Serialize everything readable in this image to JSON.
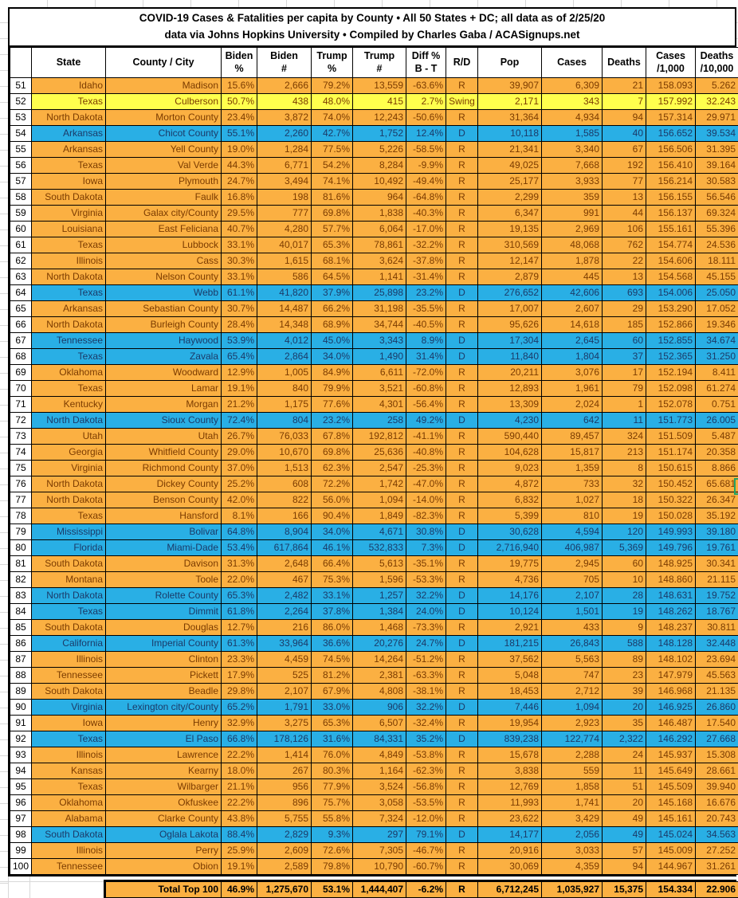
{
  "title": {
    "line1": "COVID-19 Cases & Fatalities per capita by County • All 50 States + DC; all data as of 2/25/20",
    "line2": "data via Johns Hopkins University • Compiled by Charles Gaba / ACASignups.net"
  },
  "columns": [
    {
      "key": "rownum",
      "label": ""
    },
    {
      "key": "state",
      "label": "State"
    },
    {
      "key": "county",
      "label": "County / City"
    },
    {
      "key": "biden-pct",
      "label": "Biden\n%"
    },
    {
      "key": "biden-num",
      "label": "Biden\n#"
    },
    {
      "key": "trump-pct",
      "label": "Trump\n%"
    },
    {
      "key": "trump-num",
      "label": "Trump\n#"
    },
    {
      "key": "diff",
      "label": "Diff %\nB - T"
    },
    {
      "key": "rd",
      "label": "R/D"
    },
    {
      "key": "pop",
      "label": "Pop"
    },
    {
      "key": "cases",
      "label": "Cases"
    },
    {
      "key": "deaths",
      "label": "Deaths"
    },
    {
      "key": "cases-per-1000",
      "label": "Cases\n/1,000"
    },
    {
      "key": "deaths-per-10000",
      "label": "Deaths\n/10,000"
    }
  ],
  "rows": [
    [
      "51",
      "Idaho",
      "Madison",
      "15.6%",
      "2,666",
      "79.2%",
      "13,559",
      "-63.6%",
      "R",
      "39,907",
      "6,309",
      "21",
      "158.093",
      "5.262",
      "o"
    ],
    [
      "52",
      "Texas",
      "Culberson",
      "50.7%",
      "438",
      "48.0%",
      "415",
      "2.7%",
      "Swing",
      "2,171",
      "343",
      "7",
      "157.992",
      "32.243",
      "y"
    ],
    [
      "53",
      "North Dakota",
      "Morton County",
      "23.4%",
      "3,872",
      "74.0%",
      "12,243",
      "-50.6%",
      "R",
      "31,364",
      "4,934",
      "94",
      "157.314",
      "29.971",
      "o"
    ],
    [
      "54",
      "Arkansas",
      "Chicot County",
      "55.1%",
      "2,260",
      "42.7%",
      "1,752",
      "12.4%",
      "D",
      "10,118",
      "1,585",
      "40",
      "156.652",
      "39.534",
      "b"
    ],
    [
      "55",
      "Arkansas",
      "Yell County",
      "19.0%",
      "1,284",
      "77.5%",
      "5,226",
      "-58.5%",
      "R",
      "21,341",
      "3,340",
      "67",
      "156.506",
      "31.395",
      "o"
    ],
    [
      "56",
      "Texas",
      "Val Verde",
      "44.3%",
      "6,771",
      "54.2%",
      "8,284",
      "-9.9%",
      "R",
      "49,025",
      "7,668",
      "192",
      "156.410",
      "39.164",
      "o"
    ],
    [
      "57",
      "Iowa",
      "Plymouth",
      "24.7%",
      "3,494",
      "74.1%",
      "10,492",
      "-49.4%",
      "R",
      "25,177",
      "3,933",
      "77",
      "156.214",
      "30.583",
      "o"
    ],
    [
      "58",
      "South Dakota",
      "Faulk",
      "16.8%",
      "198",
      "81.6%",
      "964",
      "-64.8%",
      "R",
      "2,299",
      "359",
      "13",
      "156.155",
      "56.546",
      "o"
    ],
    [
      "59",
      "Virginia",
      "Galax city/County",
      "29.5%",
      "777",
      "69.8%",
      "1,838",
      "-40.3%",
      "R",
      "6,347",
      "991",
      "44",
      "156.137",
      "69.324",
      "o"
    ],
    [
      "60",
      "Louisiana",
      "East Feliciana",
      "40.7%",
      "4,280",
      "57.7%",
      "6,064",
      "-17.0%",
      "R",
      "19,135",
      "2,969",
      "106",
      "155.161",
      "55.396",
      "o"
    ],
    [
      "61",
      "Texas",
      "Lubbock",
      "33.1%",
      "40,017",
      "65.3%",
      "78,861",
      "-32.2%",
      "R",
      "310,569",
      "48,068",
      "762",
      "154.774",
      "24.536",
      "o"
    ],
    [
      "62",
      "Illinois",
      "Cass",
      "30.3%",
      "1,615",
      "68.1%",
      "3,624",
      "-37.8%",
      "R",
      "12,147",
      "1,878",
      "22",
      "154.606",
      "18.111",
      "o"
    ],
    [
      "63",
      "North Dakota",
      "Nelson County",
      "33.1%",
      "586",
      "64.5%",
      "1,141",
      "-31.4%",
      "R",
      "2,879",
      "445",
      "13",
      "154.568",
      "45.155",
      "o"
    ],
    [
      "64",
      "Texas",
      "Webb",
      "61.1%",
      "41,820",
      "37.9%",
      "25,898",
      "23.2%",
      "D",
      "276,652",
      "42,606",
      "693",
      "154.006",
      "25.050",
      "b"
    ],
    [
      "65",
      "Arkansas",
      "Sebastian County",
      "30.7%",
      "14,487",
      "66.2%",
      "31,198",
      "-35.5%",
      "R",
      "17,007",
      "2,607",
      "29",
      "153.290",
      "17.052",
      "o"
    ],
    [
      "66",
      "North Dakota",
      "Burleigh County",
      "28.4%",
      "14,348",
      "68.9%",
      "34,744",
      "-40.5%",
      "R",
      "95,626",
      "14,618",
      "185",
      "152.866",
      "19.346",
      "o"
    ],
    [
      "67",
      "Tennessee",
      "Haywood",
      "53.9%",
      "4,012",
      "45.0%",
      "3,343",
      "8.9%",
      "D",
      "17,304",
      "2,645",
      "60",
      "152.855",
      "34.674",
      "b"
    ],
    [
      "68",
      "Texas",
      "Zavala",
      "65.4%",
      "2,864",
      "34.0%",
      "1,490",
      "31.4%",
      "D",
      "11,840",
      "1,804",
      "37",
      "152.365",
      "31.250",
      "b"
    ],
    [
      "69",
      "Oklahoma",
      "Woodward",
      "12.9%",
      "1,005",
      "84.9%",
      "6,611",
      "-72.0%",
      "R",
      "20,211",
      "3,076",
      "17",
      "152.194",
      "8.411",
      "o"
    ],
    [
      "70",
      "Texas",
      "Lamar",
      "19.1%",
      "840",
      "79.9%",
      "3,521",
      "-60.8%",
      "R",
      "12,893",
      "1,961",
      "79",
      "152.098",
      "61.274",
      "o"
    ],
    [
      "71",
      "Kentucky",
      "Morgan",
      "21.2%",
      "1,175",
      "77.6%",
      "4,301",
      "-56.4%",
      "R",
      "13,309",
      "2,024",
      "1",
      "152.078",
      "0.751",
      "o"
    ],
    [
      "72",
      "North Dakota",
      "Sioux County",
      "72.4%",
      "804",
      "23.2%",
      "258",
      "49.2%",
      "D",
      "4,230",
      "642",
      "11",
      "151.773",
      "26.005",
      "b"
    ],
    [
      "73",
      "Utah",
      "Utah",
      "26.7%",
      "76,033",
      "67.8%",
      "192,812",
      "-41.1%",
      "R",
      "590,440",
      "89,457",
      "324",
      "151.509",
      "5.487",
      "o"
    ],
    [
      "74",
      "Georgia",
      "Whitfield County",
      "29.0%",
      "10,670",
      "69.8%",
      "25,636",
      "-40.8%",
      "R",
      "104,628",
      "15,817",
      "213",
      "151.174",
      "20.358",
      "o"
    ],
    [
      "75",
      "Virginia",
      "Richmond County",
      "37.0%",
      "1,513",
      "62.3%",
      "2,547",
      "-25.3%",
      "R",
      "9,023",
      "1,359",
      "8",
      "150.615",
      "8.866",
      "o"
    ],
    [
      "76",
      "North Dakota",
      "Dickey County",
      "25.2%",
      "608",
      "72.2%",
      "1,742",
      "-47.0%",
      "R",
      "4,872",
      "733",
      "32",
      "150.452",
      "65.681",
      "o"
    ],
    [
      "77",
      "North Dakota",
      "Benson County",
      "42.0%",
      "822",
      "56.0%",
      "1,094",
      "-14.0%",
      "R",
      "6,832",
      "1,027",
      "18",
      "150.322",
      "26.347",
      "o"
    ],
    [
      "78",
      "Texas",
      "Hansford",
      "8.1%",
      "166",
      "90.4%",
      "1,849",
      "-82.3%",
      "R",
      "5,399",
      "810",
      "19",
      "150.028",
      "35.192",
      "o"
    ],
    [
      "79",
      "Mississippi",
      "Bolivar",
      "64.8%",
      "8,904",
      "34.0%",
      "4,671",
      "30.8%",
      "D",
      "30,628",
      "4,594",
      "120",
      "149.993",
      "39.180",
      "b"
    ],
    [
      "80",
      "Florida",
      "Miami-Dade",
      "53.4%",
      "617,864",
      "46.1%",
      "532,833",
      "7.3%",
      "D",
      "2,716,940",
      "406,987",
      "5,369",
      "149.796",
      "19.761",
      "b"
    ],
    [
      "81",
      "South Dakota",
      "Davison",
      "31.3%",
      "2,648",
      "66.4%",
      "5,613",
      "-35.1%",
      "R",
      "19,775",
      "2,945",
      "60",
      "148.925",
      "30.341",
      "o"
    ],
    [
      "82",
      "Montana",
      "Toole",
      "22.0%",
      "467",
      "75.3%",
      "1,596",
      "-53.3%",
      "R",
      "4,736",
      "705",
      "10",
      "148.860",
      "21.115",
      "o"
    ],
    [
      "83",
      "North Dakota",
      "Rolette County",
      "65.3%",
      "2,482",
      "33.1%",
      "1,257",
      "32.2%",
      "D",
      "14,176",
      "2,107",
      "28",
      "148.631",
      "19.752",
      "b"
    ],
    [
      "84",
      "Texas",
      "Dimmit",
      "61.8%",
      "2,264",
      "37.8%",
      "1,384",
      "24.0%",
      "D",
      "10,124",
      "1,501",
      "19",
      "148.262",
      "18.767",
      "b"
    ],
    [
      "85",
      "South Dakota",
      "Douglas",
      "12.7%",
      "216",
      "86.0%",
      "1,468",
      "-73.3%",
      "R",
      "2,921",
      "433",
      "9",
      "148.237",
      "30.811",
      "o"
    ],
    [
      "86",
      "California",
      "Imperial County",
      "61.3%",
      "33,964",
      "36.6%",
      "20,276",
      "24.7%",
      "D",
      "181,215",
      "26,843",
      "588",
      "148.128",
      "32.448",
      "b"
    ],
    [
      "87",
      "Illinois",
      "Clinton",
      "23.3%",
      "4,459",
      "74.5%",
      "14,264",
      "-51.2%",
      "R",
      "37,562",
      "5,563",
      "89",
      "148.102",
      "23.694",
      "o"
    ],
    [
      "88",
      "Tennessee",
      "Pickett",
      "17.9%",
      "525",
      "81.2%",
      "2,381",
      "-63.3%",
      "R",
      "5,048",
      "747",
      "23",
      "147.979",
      "45.563",
      "o"
    ],
    [
      "89",
      "South Dakota",
      "Beadle",
      "29.8%",
      "2,107",
      "67.9%",
      "4,808",
      "-38.1%",
      "R",
      "18,453",
      "2,712",
      "39",
      "146.968",
      "21.135",
      "o"
    ],
    [
      "90",
      "Virginia",
      "Lexington city/County",
      "65.2%",
      "1,791",
      "33.0%",
      "906",
      "32.2%",
      "D",
      "7,446",
      "1,094",
      "20",
      "146.925",
      "26.860",
      "b"
    ],
    [
      "91",
      "Iowa",
      "Henry",
      "32.9%",
      "3,275",
      "65.3%",
      "6,507",
      "-32.4%",
      "R",
      "19,954",
      "2,923",
      "35",
      "146.487",
      "17.540",
      "o"
    ],
    [
      "92",
      "Texas",
      "El Paso",
      "66.8%",
      "178,126",
      "31.6%",
      "84,331",
      "35.2%",
      "D",
      "839,238",
      "122,774",
      "2,322",
      "146.292",
      "27.668",
      "b"
    ],
    [
      "93",
      "Illinois",
      "Lawrence",
      "22.2%",
      "1,414",
      "76.0%",
      "4,849",
      "-53.8%",
      "R",
      "15,678",
      "2,288",
      "24",
      "145.937",
      "15.308",
      "o"
    ],
    [
      "94",
      "Kansas",
      "Kearny",
      "18.0%",
      "267",
      "80.3%",
      "1,164",
      "-62.3%",
      "R",
      "3,838",
      "559",
      "11",
      "145.649",
      "28.661",
      "o"
    ],
    [
      "95",
      "Texas",
      "Wilbarger",
      "21.1%",
      "956",
      "77.9%",
      "3,524",
      "-56.8%",
      "R",
      "12,769",
      "1,858",
      "51",
      "145.509",
      "39.940",
      "o"
    ],
    [
      "96",
      "Oklahoma",
      "Okfuskee",
      "22.2%",
      "896",
      "75.7%",
      "3,058",
      "-53.5%",
      "R",
      "11,993",
      "1,741",
      "20",
      "145.168",
      "16.676",
      "o"
    ],
    [
      "97",
      "Alabama",
      "Clarke County",
      "43.8%",
      "5,755",
      "55.8%",
      "7,324",
      "-12.0%",
      "R",
      "23,622",
      "3,429",
      "49",
      "145.161",
      "20.743",
      "o"
    ],
    [
      "98",
      "South Dakota",
      "Oglala Lakota",
      "88.4%",
      "2,829",
      "9.3%",
      "297",
      "79.1%",
      "D",
      "14,177",
      "2,056",
      "49",
      "145.024",
      "34.563",
      "b"
    ],
    [
      "99",
      "Illinois",
      "Perry",
      "25.9%",
      "2,609",
      "72.6%",
      "7,305",
      "-46.7%",
      "R",
      "20,916",
      "3,033",
      "57",
      "145.009",
      "27.252",
      "o"
    ],
    [
      "100",
      "Tennessee",
      "Obion",
      "19.1%",
      "2,589",
      "79.8%",
      "10,790",
      "-60.7%",
      "R",
      "30,069",
      "4,359",
      "94",
      "144.967",
      "31.261",
      "o"
    ]
  ],
  "total": {
    "label": "Total Top 100",
    "values": [
      "46.9%",
      "1,275,670",
      "53.1%",
      "1,444,407",
      "-6.2%",
      "R",
      "6,712,245",
      "1,035,927",
      "15,375",
      "154.334",
      "22.906"
    ]
  },
  "colors": {
    "republican_row": "#FBB042",
    "swing_row": "#FFFF4D",
    "democrat_row": "#29AFE5",
    "republican_text": "#7B3B00",
    "democrat_text": "#1B3A68",
    "selection_border": "#21A366"
  }
}
